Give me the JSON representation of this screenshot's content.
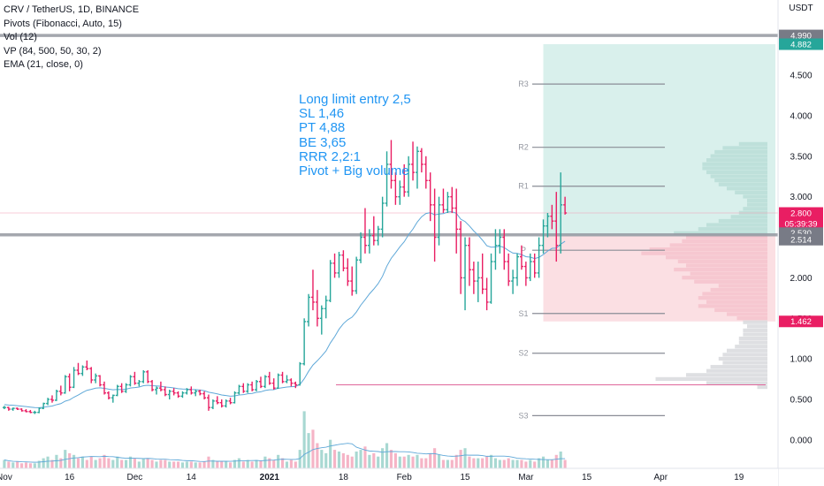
{
  "legend": {
    "symbol": "CRV / TetherUS, 1D, BINANCE",
    "pivots": "Pivots (Fibonacci, Auto, 15)",
    "vol": "Vol (12)",
    "vp": "VP (84, 500, 50, 30, 2)",
    "ema": "EMA (21, close, 0)"
  },
  "note": [
    "Long limit entry 2,5",
    "SL 1,46",
    "PT 4,88",
    "BE 3,65",
    "RRR 2,2:1",
    "Pivot + Big volume"
  ],
  "currency": "USDT",
  "colors": {
    "up": "#26a69a",
    "down": "#e91e63",
    "ema": "#5fa8d8",
    "profit_zone": "#d9f0ec",
    "loss_zone": "#fbdfe3",
    "volume_profile": "#d8d9dd",
    "pivot_line": "#8a8d96",
    "horizontal_line": "#9598a1",
    "entry_line": "#e0669b"
  },
  "chart_data": {
    "type": "candlestick",
    "ylim": [
      -0.35,
      5.1
    ],
    "yticks": [
      0,
      0.5,
      1,
      1.5,
      2,
      2.5,
      3,
      3.5,
      4,
      4.5
    ],
    "ytick_labels": [
      "0.000",
      "0.500",
      "1.000",
      "1.500",
      "2.000",
      "2.500",
      "3.000",
      "3.500",
      "4.000",
      "4.500"
    ],
    "x_labels": [
      {
        "day": 1,
        "label": "Nov"
      },
      {
        "day": 16,
        "label": "16"
      },
      {
        "day": 31,
        "label": "Dec"
      },
      {
        "day": 44,
        "label": "14"
      },
      {
        "day": 62,
        "label": "2021"
      },
      {
        "day": 79,
        "label": "18"
      },
      {
        "day": 93,
        "label": "Feb"
      },
      {
        "day": 107,
        "label": "15"
      },
      {
        "day": 121,
        "label": "Mar"
      },
      {
        "day": 135,
        "label": "15"
      },
      {
        "day": 152,
        "label": "Apr"
      },
      {
        "day": 170,
        "label": "19"
      }
    ],
    "x_domain": [
      0,
      179
    ],
    "candles": [
      [
        0.4,
        0.42,
        0.38,
        0.4
      ],
      [
        0.4,
        0.41,
        0.36,
        0.38
      ],
      [
        0.38,
        0.4,
        0.36,
        0.39
      ],
      [
        0.39,
        0.4,
        0.37,
        0.38
      ],
      [
        0.38,
        0.39,
        0.35,
        0.36
      ],
      [
        0.36,
        0.38,
        0.34,
        0.35
      ],
      [
        0.35,
        0.37,
        0.33,
        0.34
      ],
      [
        0.34,
        0.36,
        0.32,
        0.34
      ],
      [
        0.34,
        0.4,
        0.33,
        0.39
      ],
      [
        0.39,
        0.46,
        0.38,
        0.45
      ],
      [
        0.45,
        0.52,
        0.43,
        0.5
      ],
      [
        0.5,
        0.55,
        0.46,
        0.49
      ],
      [
        0.49,
        0.62,
        0.48,
        0.6
      ],
      [
        0.6,
        0.67,
        0.55,
        0.58
      ],
      [
        0.58,
        0.8,
        0.57,
        0.78
      ],
      [
        0.78,
        0.82,
        0.6,
        0.65
      ],
      [
        0.65,
        0.9,
        0.64,
        0.86
      ],
      [
        0.86,
        0.95,
        0.8,
        0.82
      ],
      [
        0.82,
        0.92,
        0.79,
        0.9
      ],
      [
        0.9,
        0.98,
        0.86,
        0.88
      ],
      [
        0.88,
        0.9,
        0.7,
        0.74
      ],
      [
        0.74,
        0.82,
        0.7,
        0.79
      ],
      [
        0.79,
        0.8,
        0.66,
        0.68
      ],
      [
        0.68,
        0.72,
        0.56,
        0.58
      ],
      [
        0.58,
        0.6,
        0.5,
        0.52
      ],
      [
        0.52,
        0.56,
        0.46,
        0.55
      ],
      [
        0.55,
        0.68,
        0.54,
        0.66
      ],
      [
        0.66,
        0.7,
        0.58,
        0.6
      ],
      [
        0.6,
        0.7,
        0.58,
        0.68
      ],
      [
        0.68,
        0.8,
        0.66,
        0.78
      ],
      [
        0.78,
        0.84,
        0.68,
        0.7
      ],
      [
        0.7,
        0.74,
        0.66,
        0.72
      ],
      [
        0.72,
        0.86,
        0.7,
        0.84
      ],
      [
        0.84,
        0.86,
        0.7,
        0.72
      ],
      [
        0.72,
        0.74,
        0.6,
        0.62
      ],
      [
        0.62,
        0.66,
        0.56,
        0.64
      ],
      [
        0.64,
        0.72,
        0.6,
        0.62
      ],
      [
        0.62,
        0.66,
        0.54,
        0.56
      ],
      [
        0.56,
        0.62,
        0.5,
        0.6
      ],
      [
        0.6,
        0.64,
        0.55,
        0.58
      ],
      [
        0.58,
        0.6,
        0.52,
        0.54
      ],
      [
        0.54,
        0.6,
        0.52,
        0.58
      ],
      [
        0.58,
        0.64,
        0.56,
        0.62
      ],
      [
        0.62,
        0.66,
        0.56,
        0.58
      ],
      [
        0.58,
        0.62,
        0.54,
        0.6
      ],
      [
        0.6,
        0.62,
        0.55,
        0.57
      ],
      [
        0.57,
        0.6,
        0.5,
        0.52
      ],
      [
        0.52,
        0.56,
        0.36,
        0.4
      ],
      [
        0.4,
        0.5,
        0.38,
        0.48
      ],
      [
        0.48,
        0.54,
        0.44,
        0.46
      ],
      [
        0.46,
        0.5,
        0.4,
        0.42
      ],
      [
        0.42,
        0.5,
        0.4,
        0.48
      ],
      [
        0.48,
        0.52,
        0.44,
        0.46
      ],
      [
        0.46,
        0.6,
        0.45,
        0.58
      ],
      [
        0.58,
        0.68,
        0.56,
        0.66
      ],
      [
        0.66,
        0.7,
        0.58,
        0.6
      ],
      [
        0.6,
        0.7,
        0.58,
        0.68
      ],
      [
        0.68,
        0.72,
        0.6,
        0.62
      ],
      [
        0.62,
        0.74,
        0.6,
        0.72
      ],
      [
        0.72,
        0.78,
        0.64,
        0.66
      ],
      [
        0.66,
        0.8,
        0.64,
        0.78
      ],
      [
        0.78,
        0.84,
        0.68,
        0.7
      ],
      [
        0.7,
        0.76,
        0.62,
        0.64
      ],
      [
        0.64,
        0.82,
        0.63,
        0.8
      ],
      [
        0.8,
        0.84,
        0.7,
        0.72
      ],
      [
        0.72,
        0.8,
        0.7,
        0.74
      ],
      [
        0.74,
        0.76,
        0.66,
        0.7
      ],
      [
        0.7,
        0.72,
        0.64,
        0.68
      ],
      [
        0.68,
        0.96,
        0.67,
        0.94
      ],
      [
        0.94,
        1.5,
        0.92,
        1.46
      ],
      [
        1.46,
        1.8,
        1.4,
        1.76
      ],
      [
        1.76,
        2.1,
        1.6,
        1.7
      ],
      [
        1.7,
        1.85,
        1.4,
        1.5
      ],
      [
        1.5,
        1.66,
        1.3,
        1.62
      ],
      [
        1.62,
        1.78,
        1.5,
        1.72
      ],
      [
        1.72,
        2.22,
        1.7,
        2.18
      ],
      [
        2.18,
        2.3,
        2.0,
        2.06
      ],
      [
        2.06,
        2.32,
        2.0,
        2.28
      ],
      [
        2.28,
        2.34,
        2.08,
        2.12
      ],
      [
        2.12,
        2.24,
        1.9,
        1.96
      ],
      [
        1.96,
        2.14,
        1.78,
        1.84
      ],
      [
        1.84,
        2.26,
        1.8,
        2.22
      ],
      [
        2.22,
        2.56,
        2.18,
        2.5
      ],
      [
        2.5,
        2.86,
        2.3,
        2.4
      ],
      [
        2.4,
        2.6,
        2.3,
        2.52
      ],
      [
        2.52,
        2.76,
        2.4,
        2.46
      ],
      [
        2.46,
        2.64,
        2.4,
        2.6
      ],
      [
        2.6,
        3.0,
        2.5,
        2.92
      ],
      [
        2.92,
        3.56,
        2.88,
        3.4
      ],
      [
        3.4,
        3.7,
        3.1,
        3.2
      ],
      [
        3.2,
        3.3,
        2.9,
        3.0
      ],
      [
        3.0,
        3.2,
        2.9,
        3.12
      ],
      [
        3.12,
        3.4,
        3.0,
        3.06
      ],
      [
        3.06,
        3.5,
        3.0,
        3.4
      ],
      [
        3.4,
        3.68,
        3.2,
        3.3
      ],
      [
        3.3,
        3.62,
        3.1,
        3.56
      ],
      [
        3.56,
        3.6,
        3.3,
        3.4
      ],
      [
        3.4,
        3.5,
        3.1,
        3.2
      ],
      [
        3.2,
        3.3,
        2.7,
        2.9
      ],
      [
        2.9,
        3.1,
        2.2,
        2.5
      ],
      [
        2.5,
        3.0,
        2.4,
        2.9
      ],
      [
        2.9,
        3.1,
        2.8,
        2.84
      ],
      [
        2.84,
        3.06,
        2.8,
        3.0
      ],
      [
        3.0,
        3.12,
        2.8,
        2.86
      ],
      [
        2.86,
        3.1,
        2.3,
        2.6
      ],
      [
        2.6,
        2.7,
        1.8,
        2.0
      ],
      [
        2.0,
        2.5,
        1.6,
        2.4
      ],
      [
        2.4,
        2.5,
        1.9,
        2.1
      ],
      [
        2.1,
        2.2,
        1.8,
        1.96
      ],
      [
        1.96,
        2.2,
        1.7,
        2.0
      ],
      [
        2.0,
        2.3,
        1.8,
        1.86
      ],
      [
        1.86,
        2.0,
        1.6,
        1.7
      ],
      [
        1.7,
        2.3,
        1.68,
        2.2
      ],
      [
        2.2,
        2.6,
        2.1,
        2.4
      ],
      [
        2.4,
        2.6,
        2.3,
        2.5
      ],
      [
        2.5,
        2.6,
        2.1,
        2.2
      ],
      [
        2.2,
        2.3,
        1.9,
        1.96
      ],
      [
        1.96,
        2.1,
        1.8,
        2.0
      ],
      [
        2.0,
        2.3,
        1.9,
        2.26
      ],
      [
        2.26,
        2.4,
        2.1,
        2.14
      ],
      [
        2.14,
        2.2,
        1.9,
        2.0
      ],
      [
        2.0,
        2.3,
        1.96,
        2.2
      ],
      [
        2.2,
        2.3,
        2.0,
        2.06
      ],
      [
        2.06,
        2.5,
        2.0,
        2.4
      ],
      [
        2.4,
        2.72,
        2.3,
        2.64
      ],
      [
        2.64,
        2.8,
        2.5,
        2.76
      ],
      [
        2.76,
        2.9,
        2.6,
        2.7
      ],
      [
        2.7,
        3.06,
        2.2,
        2.4
      ],
      [
        2.4,
        3.3,
        2.3,
        2.9
      ],
      [
        2.9,
        3.0,
        2.78,
        2.8
      ]
    ],
    "volume": [
      0.1,
      0.08,
      0.07,
      0.08,
      0.06,
      0.07,
      0.06,
      0.06,
      0.09,
      0.12,
      0.14,
      0.1,
      0.16,
      0.12,
      0.22,
      0.18,
      0.16,
      0.12,
      0.14,
      0.1,
      0.14,
      0.1,
      0.12,
      0.16,
      0.12,
      0.1,
      0.14,
      0.1,
      0.1,
      0.14,
      0.12,
      0.08,
      0.12,
      0.12,
      0.1,
      0.08,
      0.1,
      0.1,
      0.08,
      0.08,
      0.08,
      0.07,
      0.08,
      0.08,
      0.07,
      0.07,
      0.08,
      0.14,
      0.1,
      0.08,
      0.08,
      0.08,
      0.07,
      0.1,
      0.12,
      0.08,
      0.1,
      0.08,
      0.1,
      0.09,
      0.14,
      0.12,
      0.1,
      0.16,
      0.12,
      0.08,
      0.1,
      0.08,
      0.22,
      0.68,
      0.42,
      0.46,
      0.3,
      0.22,
      0.18,
      0.34,
      0.22,
      0.2,
      0.18,
      0.16,
      0.14,
      0.2,
      0.22,
      0.26,
      0.16,
      0.18,
      0.14,
      0.24,
      0.3,
      0.22,
      0.18,
      0.14,
      0.14,
      0.16,
      0.14,
      0.16,
      0.12,
      0.12,
      0.18,
      0.24,
      0.16,
      0.1,
      0.1,
      0.1,
      0.16,
      0.22,
      0.24,
      0.14,
      0.12,
      0.12,
      0.12,
      0.14,
      0.16,
      0.12,
      0.1,
      0.1,
      0.12,
      0.1,
      0.1,
      0.1,
      0.08,
      0.1,
      0.08,
      0.12,
      0.14,
      0.1,
      0.1,
      0.16,
      0.2,
      0.1
    ],
    "volume_colors_note": "volume bars colored by candle direction",
    "ema_start": 0.44,
    "pivots": [
      {
        "label": "R3",
        "value": 4.39
      },
      {
        "label": "R2",
        "value": 3.61
      },
      {
        "label": "R1",
        "value": 3.13
      },
      {
        "label": "P",
        "value": 2.34
      },
      {
        "label": "S1",
        "value": 1.56
      },
      {
        "label": "S2",
        "value": 1.07
      },
      {
        "label": "S3",
        "value": 0.3
      }
    ],
    "horizontal_lines": [
      4.99,
      2.53
    ],
    "entry_line": 0.68,
    "position": {
      "target": 4.882,
      "entry": 2.514,
      "stop": 1.462,
      "start_day": 125
    },
    "price_badges": [
      {
        "label": "4.990",
        "value": 4.99,
        "color": "#787b86"
      },
      {
        "label": "4.882",
        "value": 4.882,
        "color": "#26a69a"
      },
      {
        "label": "2.800",
        "value": 2.8,
        "color": "#e91e63"
      },
      {
        "label": "05:39:39",
        "value": 2.8,
        "color": "#e91e63",
        "secondary": true
      },
      {
        "label": "2.530",
        "value": 2.53,
        "color": "#787b86"
      },
      {
        "label": "2.514",
        "value": 2.514,
        "color": "#787b86"
      },
      {
        "label": "1.462",
        "value": 1.462,
        "color": "#e91e63"
      }
    ],
    "volume_profile": [
      [
        0.65,
        0.05
      ],
      [
        0.7,
        0.3
      ],
      [
        0.75,
        0.55
      ],
      [
        0.8,
        0.4
      ],
      [
        0.85,
        0.3
      ],
      [
        0.9,
        0.28
      ],
      [
        0.95,
        0.22
      ],
      [
        1.0,
        0.24
      ],
      [
        1.05,
        0.22
      ],
      [
        1.1,
        0.2
      ],
      [
        1.15,
        0.16
      ],
      [
        1.2,
        0.14
      ],
      [
        1.25,
        0.14
      ],
      [
        1.3,
        0.12
      ],
      [
        1.35,
        0.12
      ],
      [
        1.4,
        0.1
      ],
      [
        1.45,
        0.12
      ],
      [
        1.5,
        0.15
      ],
      [
        1.55,
        0.2
      ],
      [
        1.6,
        0.26
      ],
      [
        1.65,
        0.34
      ],
      [
        1.7,
        0.3
      ],
      [
        1.75,
        0.34
      ],
      [
        1.8,
        0.32
      ],
      [
        1.85,
        0.28
      ],
      [
        1.9,
        0.24
      ],
      [
        1.95,
        0.36
      ],
      [
        2.0,
        0.42
      ],
      [
        2.05,
        0.38
      ],
      [
        2.1,
        0.46
      ],
      [
        2.15,
        0.4
      ],
      [
        2.2,
        0.44
      ],
      [
        2.25,
        0.5
      ],
      [
        2.3,
        0.62
      ],
      [
        2.35,
        0.58
      ],
      [
        2.4,
        0.48
      ],
      [
        2.45,
        0.42
      ],
      [
        2.5,
        0.4
      ],
      [
        2.55,
        0.46
      ],
      [
        2.6,
        0.34
      ],
      [
        2.65,
        0.3
      ],
      [
        2.7,
        0.24
      ],
      [
        2.75,
        0.18
      ],
      [
        2.8,
        0.14
      ],
      [
        2.85,
        0.12
      ],
      [
        2.9,
        0.1
      ],
      [
        2.95,
        0.1
      ],
      [
        3.0,
        0.12
      ],
      [
        3.05,
        0.16
      ],
      [
        3.1,
        0.2
      ],
      [
        3.15,
        0.24
      ],
      [
        3.2,
        0.26
      ],
      [
        3.25,
        0.28
      ],
      [
        3.3,
        0.3
      ],
      [
        3.35,
        0.32
      ],
      [
        3.4,
        0.32
      ],
      [
        3.45,
        0.3
      ],
      [
        3.5,
        0.28
      ],
      [
        3.55,
        0.26
      ],
      [
        3.6,
        0.22
      ],
      [
        3.65,
        0.14
      ]
    ]
  }
}
